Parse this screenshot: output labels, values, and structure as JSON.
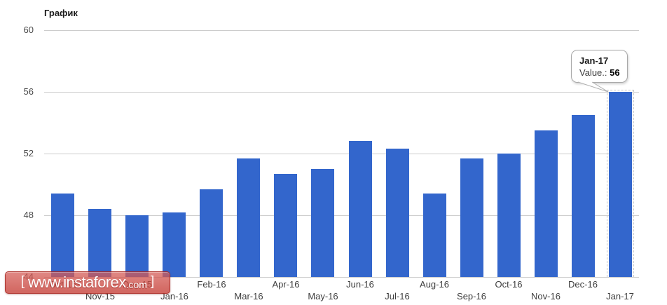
{
  "chart": {
    "title": "График",
    "colors": {
      "bar": "#3366cc",
      "gridline": "#cccccc",
      "y_label": "#4a4a4a",
      "x_label": "#3d3d3d",
      "title": "#1a1a1a"
    }
  },
  "chart_data": {
    "type": "bar",
    "title": "График",
    "categories": [
      "Oct-15",
      "Nov-15",
      "Dec-15",
      "Jan-16",
      "Feb-16",
      "Mar-16",
      "Apr-16",
      "May-16",
      "Jun-16",
      "Jul-16",
      "Aug-16",
      "Sep-16",
      "Oct-16",
      "Nov-16",
      "Dec-16",
      "Jan-17"
    ],
    "values": [
      49.4,
      48.4,
      48.0,
      48.2,
      49.7,
      51.7,
      50.7,
      51.0,
      52.8,
      52.3,
      49.4,
      51.7,
      52.0,
      53.5,
      54.5,
      56.0
    ],
    "xlabel": "",
    "ylabel": "",
    "ylim": [
      44,
      60
    ],
    "y_ticks": [
      60,
      56,
      52,
      48,
      44
    ],
    "grid": true,
    "legend_position": "none",
    "selected_index": 15,
    "selected_label": "Jan-17",
    "selected_value": 56
  },
  "tooltip": {
    "title": "Jan-17",
    "value_label": "Value.:",
    "value": "56"
  },
  "watermark": {
    "bracket_open": "[",
    "main": "www.instaforex",
    "suffix": ".com",
    "bracket_close": "]"
  }
}
